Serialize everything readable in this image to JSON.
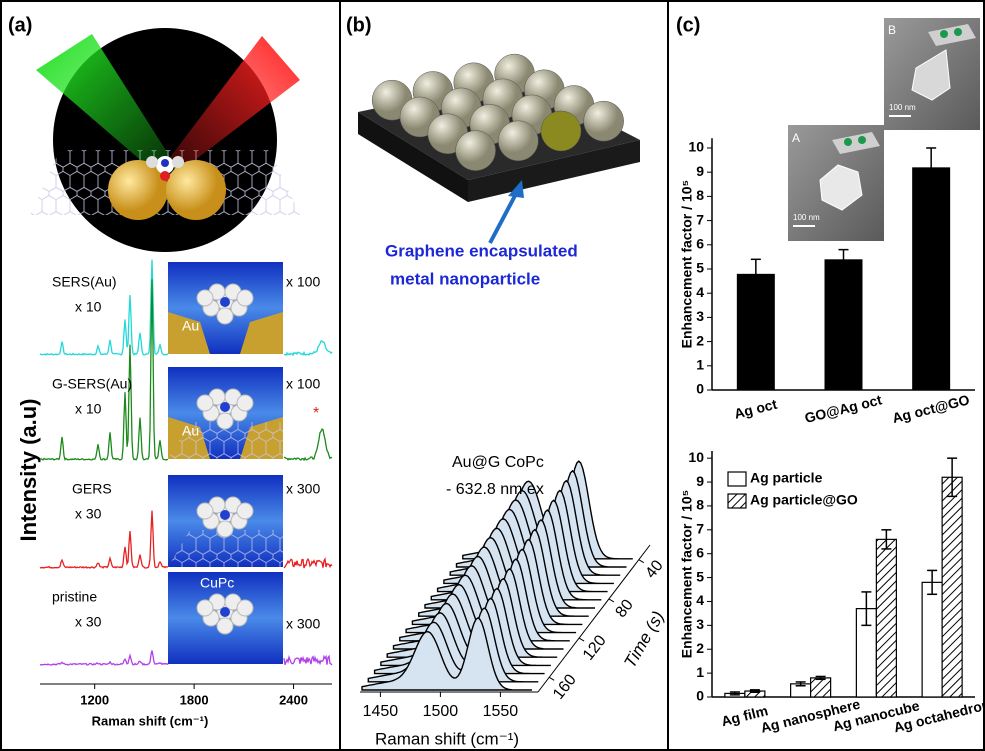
{
  "panel_a": {
    "label": "(a)",
    "y_label": "Intensity (a.u)",
    "x_label": "Raman shift (cm⁻¹)",
    "xticks": [
      1200,
      1800,
      2400
    ],
    "xlim": [
      870,
      2620
    ],
    "spectra": [
      {
        "name": "SERS(Au)",
        "scale": "x 10",
        "inset_scale": "x 100",
        "inset_label": "Au",
        "color": "#22d8d8"
      },
      {
        "name": "G-SERS(Au)",
        "scale": "x 10",
        "inset_scale": "x 100",
        "inset_label": "Au",
        "color": "#1a8a1a"
      },
      {
        "name": "GERS",
        "scale": "x 30",
        "inset_scale": "x 300",
        "color": "#e82020"
      },
      {
        "name": "pristine",
        "scale": "x 30",
        "inset_scale": "x 300",
        "inset_label": "CuPc",
        "color": "#b040e8"
      }
    ]
  },
  "panel_b": {
    "label": "(b)",
    "caption": [
      "Graphene encapsulated",
      "metal nanoparticle"
    ],
    "legend": [
      "Au@G  CoPc",
      "- 632.8 nm ex"
    ],
    "x_label": "Raman shift (cm⁻¹)",
    "xticks": [
      1450,
      1500,
      1550
    ],
    "xlim": [
      1433,
      1583
    ],
    "time_label": "Time (s)",
    "time_ticks": [
      40,
      80,
      120,
      160
    ],
    "time_lim": [
      175,
      25
    ]
  },
  "panel_c": {
    "label": "(c)",
    "insets": [
      "A",
      "B"
    ],
    "scale_bars": [
      "100 nm",
      "100 nm"
    ]
  },
  "chart_data": [
    {
      "type": "bar",
      "y_label": "Enhancement factor / 10⁵",
      "categories": [
        "Ag oct",
        "GO@Ag oct",
        "Ag oct@GO"
      ],
      "values": [
        4.8,
        5.4,
        9.2
      ],
      "errors": [
        0.6,
        0.4,
        0.8
      ],
      "color": "#000000",
      "ylim": [
        0,
        10.4
      ],
      "yticks": [
        0,
        1,
        2,
        3,
        4,
        5,
        6,
        7,
        8,
        9,
        10
      ]
    },
    {
      "type": "grouped-bar",
      "y_label": "Enhancement factor / 10⁵",
      "categories": [
        "Ag film",
        "Ag nanosphere",
        "Ag nanocube",
        "Ag octahedron"
      ],
      "series": [
        {
          "name": "Ag particle",
          "color": "#ffffff",
          "values": [
            0.15,
            0.55,
            3.7,
            4.8
          ],
          "errors": [
            0.06,
            0.08,
            0.7,
            0.5
          ]
        },
        {
          "name": "Ag particle@GO",
          "color": "#ffffff",
          "hatch": true,
          "values": [
            0.25,
            0.8,
            6.6,
            9.2
          ],
          "errors": [
            0.05,
            0.06,
            0.4,
            0.8
          ]
        }
      ],
      "legend": "upper left",
      "ylim": [
        0,
        10.3
      ],
      "yticks": [
        0,
        1,
        2,
        3,
        4,
        5,
        6,
        7,
        8,
        9,
        10
      ]
    }
  ]
}
